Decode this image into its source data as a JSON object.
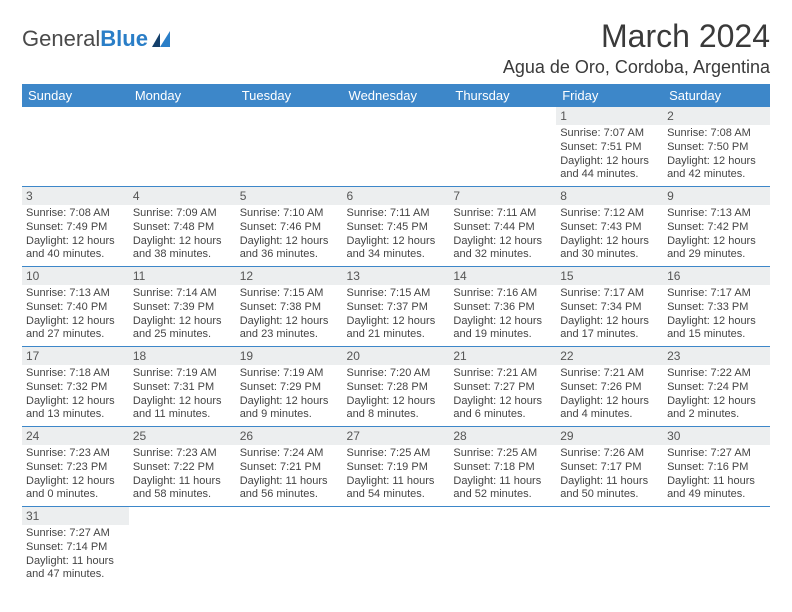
{
  "logo": {
    "text1": "General",
    "text2": "Blue"
  },
  "title": "March 2024",
  "location": "Agua de Oro, Cordoba, Argentina",
  "colors": {
    "header_bg": "#3d87c9",
    "header_text": "#ffffff",
    "daynum_bg": "#eceeef",
    "row_border": "#3d87c9",
    "body_text": "#444444",
    "logo_blue": "#2a7ec7"
  },
  "weekdays": [
    "Sunday",
    "Monday",
    "Tuesday",
    "Wednesday",
    "Thursday",
    "Friday",
    "Saturday"
  ],
  "weeks": [
    [
      {
        "n": "",
        "lines": []
      },
      {
        "n": "",
        "lines": []
      },
      {
        "n": "",
        "lines": []
      },
      {
        "n": "",
        "lines": []
      },
      {
        "n": "",
        "lines": []
      },
      {
        "n": "1",
        "lines": [
          "Sunrise: 7:07 AM",
          "Sunset: 7:51 PM",
          "Daylight: 12 hours and 44 minutes."
        ]
      },
      {
        "n": "2",
        "lines": [
          "Sunrise: 7:08 AM",
          "Sunset: 7:50 PM",
          "Daylight: 12 hours and 42 minutes."
        ]
      }
    ],
    [
      {
        "n": "3",
        "lines": [
          "Sunrise: 7:08 AM",
          "Sunset: 7:49 PM",
          "Daylight: 12 hours and 40 minutes."
        ]
      },
      {
        "n": "4",
        "lines": [
          "Sunrise: 7:09 AM",
          "Sunset: 7:48 PM",
          "Daylight: 12 hours and 38 minutes."
        ]
      },
      {
        "n": "5",
        "lines": [
          "Sunrise: 7:10 AM",
          "Sunset: 7:46 PM",
          "Daylight: 12 hours and 36 minutes."
        ]
      },
      {
        "n": "6",
        "lines": [
          "Sunrise: 7:11 AM",
          "Sunset: 7:45 PM",
          "Daylight: 12 hours and 34 minutes."
        ]
      },
      {
        "n": "7",
        "lines": [
          "Sunrise: 7:11 AM",
          "Sunset: 7:44 PM",
          "Daylight: 12 hours and 32 minutes."
        ]
      },
      {
        "n": "8",
        "lines": [
          "Sunrise: 7:12 AM",
          "Sunset: 7:43 PM",
          "Daylight: 12 hours and 30 minutes."
        ]
      },
      {
        "n": "9",
        "lines": [
          "Sunrise: 7:13 AM",
          "Sunset: 7:42 PM",
          "Daylight: 12 hours and 29 minutes."
        ]
      }
    ],
    [
      {
        "n": "10",
        "lines": [
          "Sunrise: 7:13 AM",
          "Sunset: 7:40 PM",
          "Daylight: 12 hours and 27 minutes."
        ]
      },
      {
        "n": "11",
        "lines": [
          "Sunrise: 7:14 AM",
          "Sunset: 7:39 PM",
          "Daylight: 12 hours and 25 minutes."
        ]
      },
      {
        "n": "12",
        "lines": [
          "Sunrise: 7:15 AM",
          "Sunset: 7:38 PM",
          "Daylight: 12 hours and 23 minutes."
        ]
      },
      {
        "n": "13",
        "lines": [
          "Sunrise: 7:15 AM",
          "Sunset: 7:37 PM",
          "Daylight: 12 hours and 21 minutes."
        ]
      },
      {
        "n": "14",
        "lines": [
          "Sunrise: 7:16 AM",
          "Sunset: 7:36 PM",
          "Daylight: 12 hours and 19 minutes."
        ]
      },
      {
        "n": "15",
        "lines": [
          "Sunrise: 7:17 AM",
          "Sunset: 7:34 PM",
          "Daylight: 12 hours and 17 minutes."
        ]
      },
      {
        "n": "16",
        "lines": [
          "Sunrise: 7:17 AM",
          "Sunset: 7:33 PM",
          "Daylight: 12 hours and 15 minutes."
        ]
      }
    ],
    [
      {
        "n": "17",
        "lines": [
          "Sunrise: 7:18 AM",
          "Sunset: 7:32 PM",
          "Daylight: 12 hours and 13 minutes."
        ]
      },
      {
        "n": "18",
        "lines": [
          "Sunrise: 7:19 AM",
          "Sunset: 7:31 PM",
          "Daylight: 12 hours and 11 minutes."
        ]
      },
      {
        "n": "19",
        "lines": [
          "Sunrise: 7:19 AM",
          "Sunset: 7:29 PM",
          "Daylight: 12 hours and 9 minutes."
        ]
      },
      {
        "n": "20",
        "lines": [
          "Sunrise: 7:20 AM",
          "Sunset: 7:28 PM",
          "Daylight: 12 hours and 8 minutes."
        ]
      },
      {
        "n": "21",
        "lines": [
          "Sunrise: 7:21 AM",
          "Sunset: 7:27 PM",
          "Daylight: 12 hours and 6 minutes."
        ]
      },
      {
        "n": "22",
        "lines": [
          "Sunrise: 7:21 AM",
          "Sunset: 7:26 PM",
          "Daylight: 12 hours and 4 minutes."
        ]
      },
      {
        "n": "23",
        "lines": [
          "Sunrise: 7:22 AM",
          "Sunset: 7:24 PM",
          "Daylight: 12 hours and 2 minutes."
        ]
      }
    ],
    [
      {
        "n": "24",
        "lines": [
          "Sunrise: 7:23 AM",
          "Sunset: 7:23 PM",
          "Daylight: 12 hours and 0 minutes."
        ]
      },
      {
        "n": "25",
        "lines": [
          "Sunrise: 7:23 AM",
          "Sunset: 7:22 PM",
          "Daylight: 11 hours and 58 minutes."
        ]
      },
      {
        "n": "26",
        "lines": [
          "Sunrise: 7:24 AM",
          "Sunset: 7:21 PM",
          "Daylight: 11 hours and 56 minutes."
        ]
      },
      {
        "n": "27",
        "lines": [
          "Sunrise: 7:25 AM",
          "Sunset: 7:19 PM",
          "Daylight: 11 hours and 54 minutes."
        ]
      },
      {
        "n": "28",
        "lines": [
          "Sunrise: 7:25 AM",
          "Sunset: 7:18 PM",
          "Daylight: 11 hours and 52 minutes."
        ]
      },
      {
        "n": "29",
        "lines": [
          "Sunrise: 7:26 AM",
          "Sunset: 7:17 PM",
          "Daylight: 11 hours and 50 minutes."
        ]
      },
      {
        "n": "30",
        "lines": [
          "Sunrise: 7:27 AM",
          "Sunset: 7:16 PM",
          "Daylight: 11 hours and 49 minutes."
        ]
      }
    ],
    [
      {
        "n": "31",
        "lines": [
          "Sunrise: 7:27 AM",
          "Sunset: 7:14 PM",
          "Daylight: 11 hours and 47 minutes."
        ]
      },
      {
        "n": "",
        "lines": []
      },
      {
        "n": "",
        "lines": []
      },
      {
        "n": "",
        "lines": []
      },
      {
        "n": "",
        "lines": []
      },
      {
        "n": "",
        "lines": []
      },
      {
        "n": "",
        "lines": []
      }
    ]
  ]
}
